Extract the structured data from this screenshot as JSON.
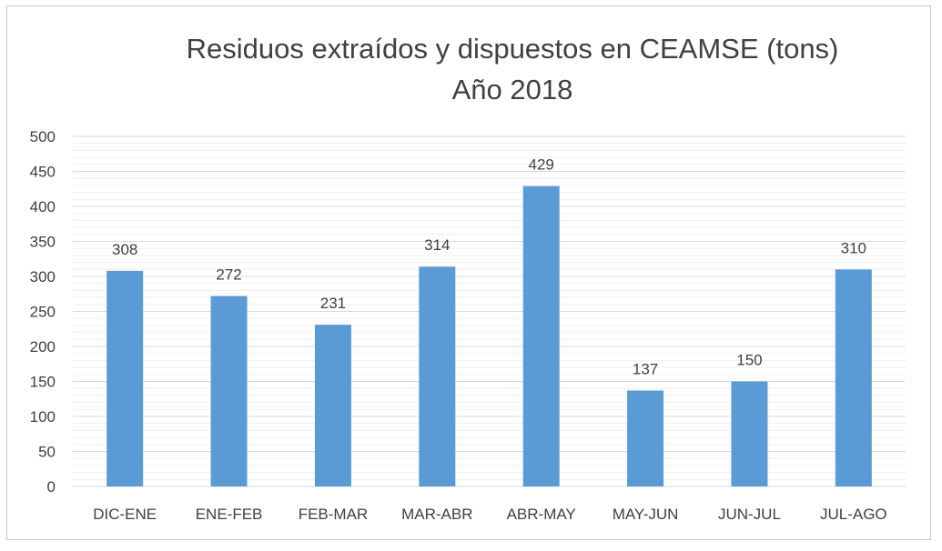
{
  "chart_data": {
    "type": "bar",
    "title": "Residuos extraídos y dispuestos en CEAMSE (tons)",
    "subtitle": "Año 2018",
    "xlabel": "",
    "ylabel": "",
    "categories": [
      "DIC-ENE",
      "ENE-FEB",
      "FEB-MAR",
      "MAR-ABR",
      "ABR-MAY",
      "MAY-JUN",
      "JUN-JUL",
      "JUL-AGO"
    ],
    "values": [
      308,
      272,
      231,
      314,
      429,
      137,
      150,
      310
    ],
    "ylim": [
      0,
      500
    ],
    "yticks": [
      0,
      50,
      100,
      150,
      200,
      250,
      300,
      350,
      400,
      450,
      500
    ],
    "grid": true,
    "legend": "none",
    "bar_color": "#5b9bd5",
    "grid_color": "#d9d9d9",
    "text_color": "#404040"
  }
}
